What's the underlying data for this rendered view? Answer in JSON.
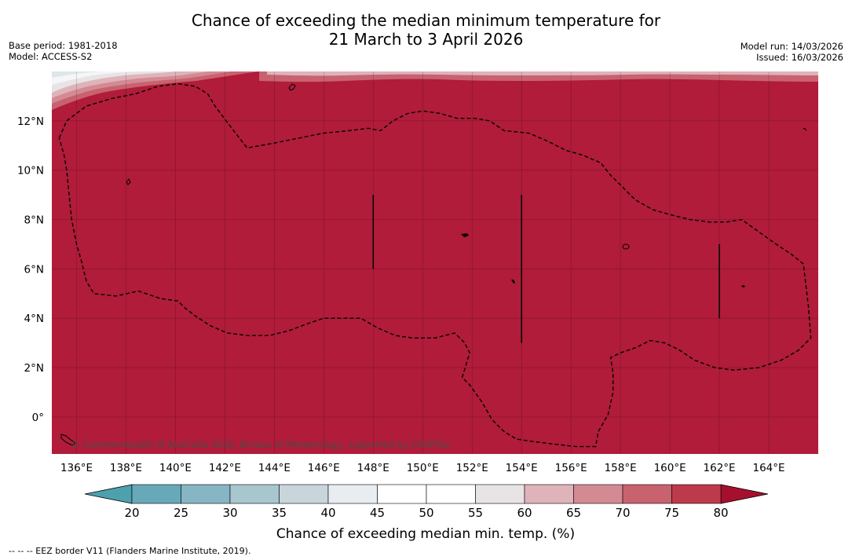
{
  "title": {
    "line1": "Chance of exceeding the median minimum temperature for",
    "line2": "21 March to 3 April 2026"
  },
  "meta_left": {
    "base_period": "Base period: 1981-2018",
    "model": "Model: ACCESS-S2"
  },
  "meta_right": {
    "model_run": "Model run: 14/03/2026",
    "issued": "Issued: 16/03/2026"
  },
  "map": {
    "lon_range": [
      135,
      166
    ],
    "lat_range": [
      -1.5,
      14
    ],
    "lat_ticks": [
      "12°N",
      "10°N",
      "8°N",
      "6°N",
      "4°N",
      "2°N",
      "0°"
    ],
    "lon_ticks": [
      "136°E",
      "138°E",
      "140°E",
      "142°E",
      "144°E",
      "146°E",
      "148°E",
      "150°E",
      "152°E",
      "154°E",
      "156°E",
      "158°E",
      "160°E",
      "162°E",
      "164°E"
    ],
    "fill_color": "#b01c3a",
    "eez_border": [
      [
        135.3,
        11.3
      ],
      [
        135.6,
        12.0
      ],
      [
        136.4,
        12.6
      ],
      [
        137.4,
        12.9
      ],
      [
        138.4,
        13.1
      ],
      [
        139.3,
        13.4
      ],
      [
        140.1,
        13.5
      ],
      [
        140.8,
        13.4
      ],
      [
        141.3,
        13.1
      ],
      [
        141.6,
        12.6
      ],
      [
        142.2,
        11.8
      ],
      [
        142.9,
        10.9
      ],
      [
        144.0,
        11.1
      ],
      [
        145.0,
        11.3
      ],
      [
        146.0,
        11.5
      ],
      [
        147.0,
        11.6
      ],
      [
        147.8,
        11.7
      ],
      [
        148.3,
        11.6
      ],
      [
        148.8,
        12.0
      ],
      [
        149.4,
        12.3
      ],
      [
        150.0,
        12.4
      ],
      [
        150.7,
        12.3
      ],
      [
        151.4,
        12.1
      ],
      [
        152.1,
        12.1
      ],
      [
        152.7,
        12.0
      ],
      [
        153.3,
        11.6
      ],
      [
        154.3,
        11.5
      ],
      [
        155.0,
        11.2
      ],
      [
        155.8,
        10.8
      ],
      [
        156.5,
        10.6
      ],
      [
        157.2,
        10.3
      ],
      [
        157.6,
        9.8
      ],
      [
        158.1,
        9.3
      ],
      [
        158.6,
        8.8
      ],
      [
        159.3,
        8.4
      ],
      [
        160.0,
        8.2
      ],
      [
        160.8,
        8.0
      ],
      [
        161.6,
        7.9
      ],
      [
        162.3,
        7.9
      ],
      [
        162.9,
        8.0
      ],
      [
        163.6,
        7.5
      ],
      [
        164.3,
        7.0
      ],
      [
        164.9,
        6.6
      ],
      [
        165.4,
        6.2
      ],
      [
        165.6,
        4.5
      ],
      [
        165.7,
        3.2
      ],
      [
        165.2,
        2.7
      ],
      [
        164.5,
        2.3
      ],
      [
        163.6,
        2.0
      ],
      [
        162.6,
        1.9
      ],
      [
        161.8,
        2.0
      ],
      [
        161.0,
        2.3
      ],
      [
        160.4,
        2.7
      ],
      [
        159.8,
        3.0
      ],
      [
        159.2,
        3.1
      ],
      [
        158.6,
        2.8
      ],
      [
        158.0,
        2.6
      ],
      [
        157.6,
        2.4
      ],
      [
        157.7,
        1.8
      ],
      [
        157.7,
        1.0
      ],
      [
        157.5,
        0.1
      ],
      [
        157.1,
        -0.6
      ],
      [
        157.0,
        -1.2
      ],
      [
        156.2,
        -1.2
      ],
      [
        155.3,
        -1.1
      ],
      [
        154.5,
        -1.0
      ],
      [
        153.8,
        -0.9
      ],
      [
        153.3,
        -0.6
      ],
      [
        152.8,
        -0.1
      ],
      [
        152.4,
        0.6
      ],
      [
        151.9,
        1.3
      ],
      [
        151.6,
        1.6
      ],
      [
        151.9,
        2.6
      ],
      [
        151.7,
        3.0
      ],
      [
        151.3,
        3.4
      ],
      [
        150.5,
        3.2
      ],
      [
        149.6,
        3.2
      ],
      [
        148.9,
        3.3
      ],
      [
        148.2,
        3.6
      ],
      [
        147.5,
        4.0
      ],
      [
        146.7,
        4.0
      ],
      [
        146.0,
        4.0
      ],
      [
        145.4,
        3.8
      ],
      [
        144.6,
        3.5
      ],
      [
        143.8,
        3.3
      ],
      [
        142.9,
        3.3
      ],
      [
        142.1,
        3.4
      ],
      [
        141.4,
        3.7
      ],
      [
        140.8,
        4.1
      ],
      [
        140.4,
        4.4
      ],
      [
        140.1,
        4.7
      ],
      [
        139.4,
        4.8
      ],
      [
        138.5,
        5.1
      ],
      [
        137.6,
        4.9
      ],
      [
        136.7,
        5.0
      ],
      [
        136.4,
        5.5
      ],
      [
        136.2,
        6.3
      ],
      [
        136.0,
        7.0
      ],
      [
        135.8,
        8.0
      ],
      [
        135.7,
        9.0
      ],
      [
        135.6,
        10.0
      ],
      [
        135.5,
        10.6
      ],
      [
        135.3,
        11.3
      ]
    ],
    "vertical_lines": [
      {
        "lon": 148.0,
        "lat_top": 9.0,
        "lat_bottom": 6.0
      },
      {
        "lon": 154.0,
        "lat_top": 9.0,
        "lat_bottom": 3.0
      },
      {
        "lon": 162.0,
        "lat_top": 7.0,
        "lat_bottom": 4.0
      }
    ],
    "copyright": "© Commonwealth of Australia 2026, Bureau of Meteorology, supported by COSPPac"
  },
  "colorbar": {
    "label": "Chance of exceeding median min. temp. (%)",
    "ticks": [
      "20",
      "25",
      "30",
      "35",
      "40",
      "45",
      "50",
      "55",
      "60",
      "65",
      "70",
      "75",
      "80"
    ],
    "under_color": "#4da1af",
    "over_color": "#a6102e",
    "colors": [
      "#67a9b9",
      "#86b5c3",
      "#a8c6cd",
      "#c8d6dc",
      "#e7edf0",
      "#ffffff",
      "#ffffff",
      "#e8e4e6",
      "#deb3b9",
      "#d38a93",
      "#c8626f",
      "#bd3a4d"
    ]
  },
  "footnote": "--  --  -- EEZ border V11 (Flanders Marine Institute, 2019)."
}
